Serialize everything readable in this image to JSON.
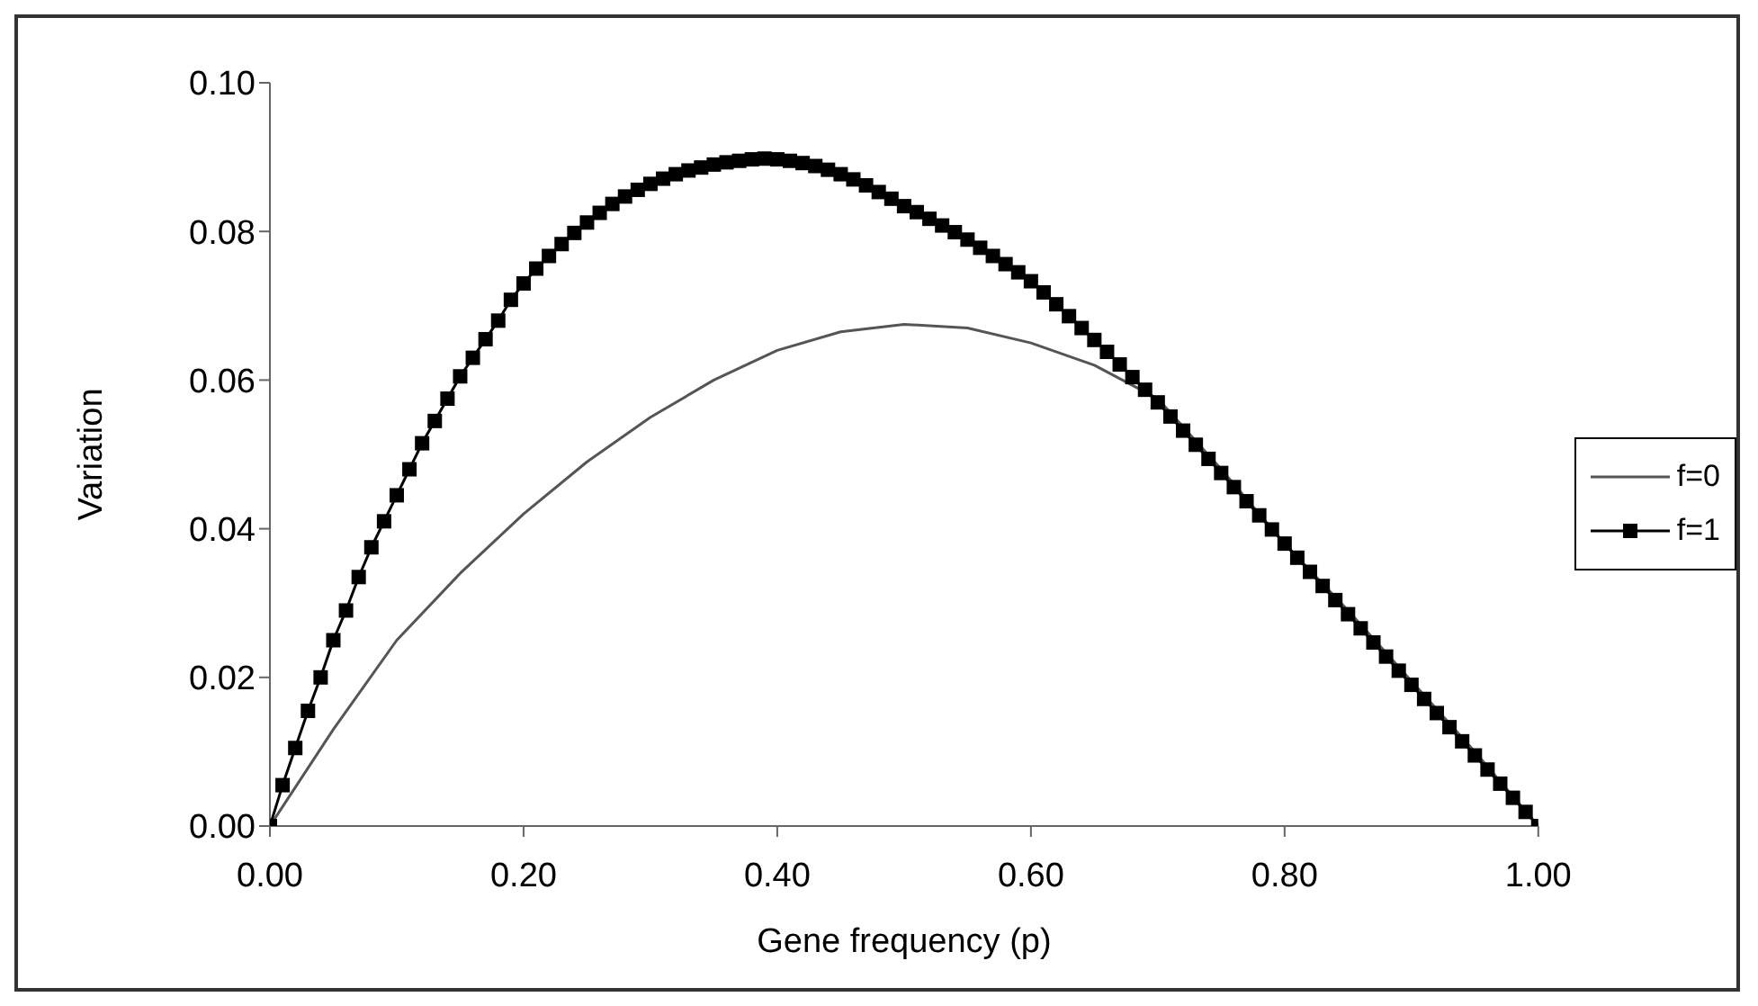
{
  "chart_data": {
    "type": "line",
    "xlabel": "Gene frequency (p)",
    "ylabel": "Variation",
    "xlim": [
      0,
      1
    ],
    "xticks": [
      {
        "value": 0,
        "label": "0.00"
      },
      {
        "value": 0.2,
        "label": "0.20"
      },
      {
        "value": 0.4,
        "label": "0.40"
      },
      {
        "value": 0.6,
        "label": "0.60"
      },
      {
        "value": 0.8,
        "label": "0.80"
      },
      {
        "value": 1,
        "label": "1.00"
      }
    ],
    "ylim": [
      0,
      0.1
    ],
    "yticks": [
      {
        "value": 0,
        "label": "0.00"
      },
      {
        "value": 0.02,
        "label": "0.02"
      },
      {
        "value": 0.04,
        "label": "0.04"
      },
      {
        "value": 0.06,
        "label": "0.06"
      },
      {
        "value": 0.08,
        "label": "0.08"
      },
      {
        "value": 0.1,
        "label": "0.10"
      }
    ],
    "grid": false,
    "legend": "right",
    "series": [
      {
        "name": "f=0",
        "color": "#555555",
        "marker": "none",
        "x": [
          0,
          0.05,
          0.1,
          0.15,
          0.2,
          0.25,
          0.3,
          0.35,
          0.4,
          0.45,
          0.5,
          0.55,
          0.6,
          0.65,
          0.7,
          0.75,
          0.8,
          0.85,
          0.9,
          0.95,
          1
        ],
        "values": [
          0,
          0.013,
          0.025,
          0.034,
          0.042,
          0.049,
          0.055,
          0.06,
          0.064,
          0.0665,
          0.0675,
          0.067,
          0.065,
          0.062,
          0.0575,
          0.048,
          0.038,
          0.029,
          0.0195,
          0.01,
          0
        ]
      },
      {
        "name": "f=1",
        "color": "#000000",
        "marker": "square",
        "x": [
          0,
          0.01,
          0.02,
          0.03,
          0.04,
          0.05,
          0.06,
          0.07,
          0.08,
          0.09,
          0.1,
          0.11,
          0.12,
          0.13,
          0.14,
          0.15,
          0.16,
          0.17,
          0.18,
          0.19,
          0.2,
          0.21,
          0.22,
          0.23,
          0.24,
          0.25,
          0.26,
          0.27,
          0.28,
          0.29,
          0.3,
          0.31,
          0.32,
          0.33,
          0.34,
          0.35,
          0.36,
          0.37,
          0.38,
          0.39,
          0.4,
          0.41,
          0.42,
          0.43,
          0.44,
          0.45,
          0.46,
          0.47,
          0.48,
          0.49,
          0.5,
          0.51,
          0.52,
          0.53,
          0.54,
          0.55,
          0.56,
          0.57,
          0.58,
          0.59,
          0.6,
          0.61,
          0.62,
          0.63,
          0.64,
          0.65,
          0.66,
          0.67,
          0.68,
          0.69,
          0.7,
          0.71,
          0.72,
          0.73,
          0.74,
          0.75,
          0.76,
          0.77,
          0.78,
          0.79,
          0.8,
          0.81,
          0.82,
          0.83,
          0.84,
          0.85,
          0.86,
          0.87,
          0.88,
          0.89,
          0.9,
          0.91,
          0.92,
          0.93,
          0.94,
          0.95,
          0.96,
          0.97,
          0.98,
          0.99,
          1
        ],
        "values": [
          0,
          0.0055,
          0.0105,
          0.0155,
          0.02,
          0.025,
          0.029,
          0.0335,
          0.0375,
          0.041,
          0.0445,
          0.048,
          0.0515,
          0.0545,
          0.0575,
          0.0605,
          0.063,
          0.0655,
          0.068,
          0.0708,
          0.073,
          0.075,
          0.0767,
          0.0783,
          0.0798,
          0.0812,
          0.0825,
          0.0837,
          0.0847,
          0.0856,
          0.0864,
          0.0871,
          0.0877,
          0.0882,
          0.0886,
          0.089,
          0.0893,
          0.0895,
          0.0897,
          0.0898,
          0.0897,
          0.0895,
          0.0892,
          0.0888,
          0.0883,
          0.0877,
          0.087,
          0.0862,
          0.0853,
          0.0844,
          0.0834,
          0.0826,
          0.0817,
          0.0808,
          0.0799,
          0.0789,
          0.0778,
          0.0767,
          0.0756,
          0.0745,
          0.0733,
          0.0718,
          0.0702,
          0.0686,
          0.067,
          0.0654,
          0.0638,
          0.0621,
          0.0604,
          0.0587,
          0.057,
          0.0551,
          0.0532,
          0.0513,
          0.0494,
          0.0475,
          0.0456,
          0.0437,
          0.0418,
          0.0399,
          0.038,
          0.0361,
          0.0342,
          0.0323,
          0.0304,
          0.0285,
          0.0266,
          0.0247,
          0.0228,
          0.0209,
          0.019,
          0.0171,
          0.0152,
          0.0133,
          0.0114,
          0.0095,
          0.0076,
          0.0057,
          0.0038,
          0.0019,
          0
        ]
      }
    ]
  }
}
